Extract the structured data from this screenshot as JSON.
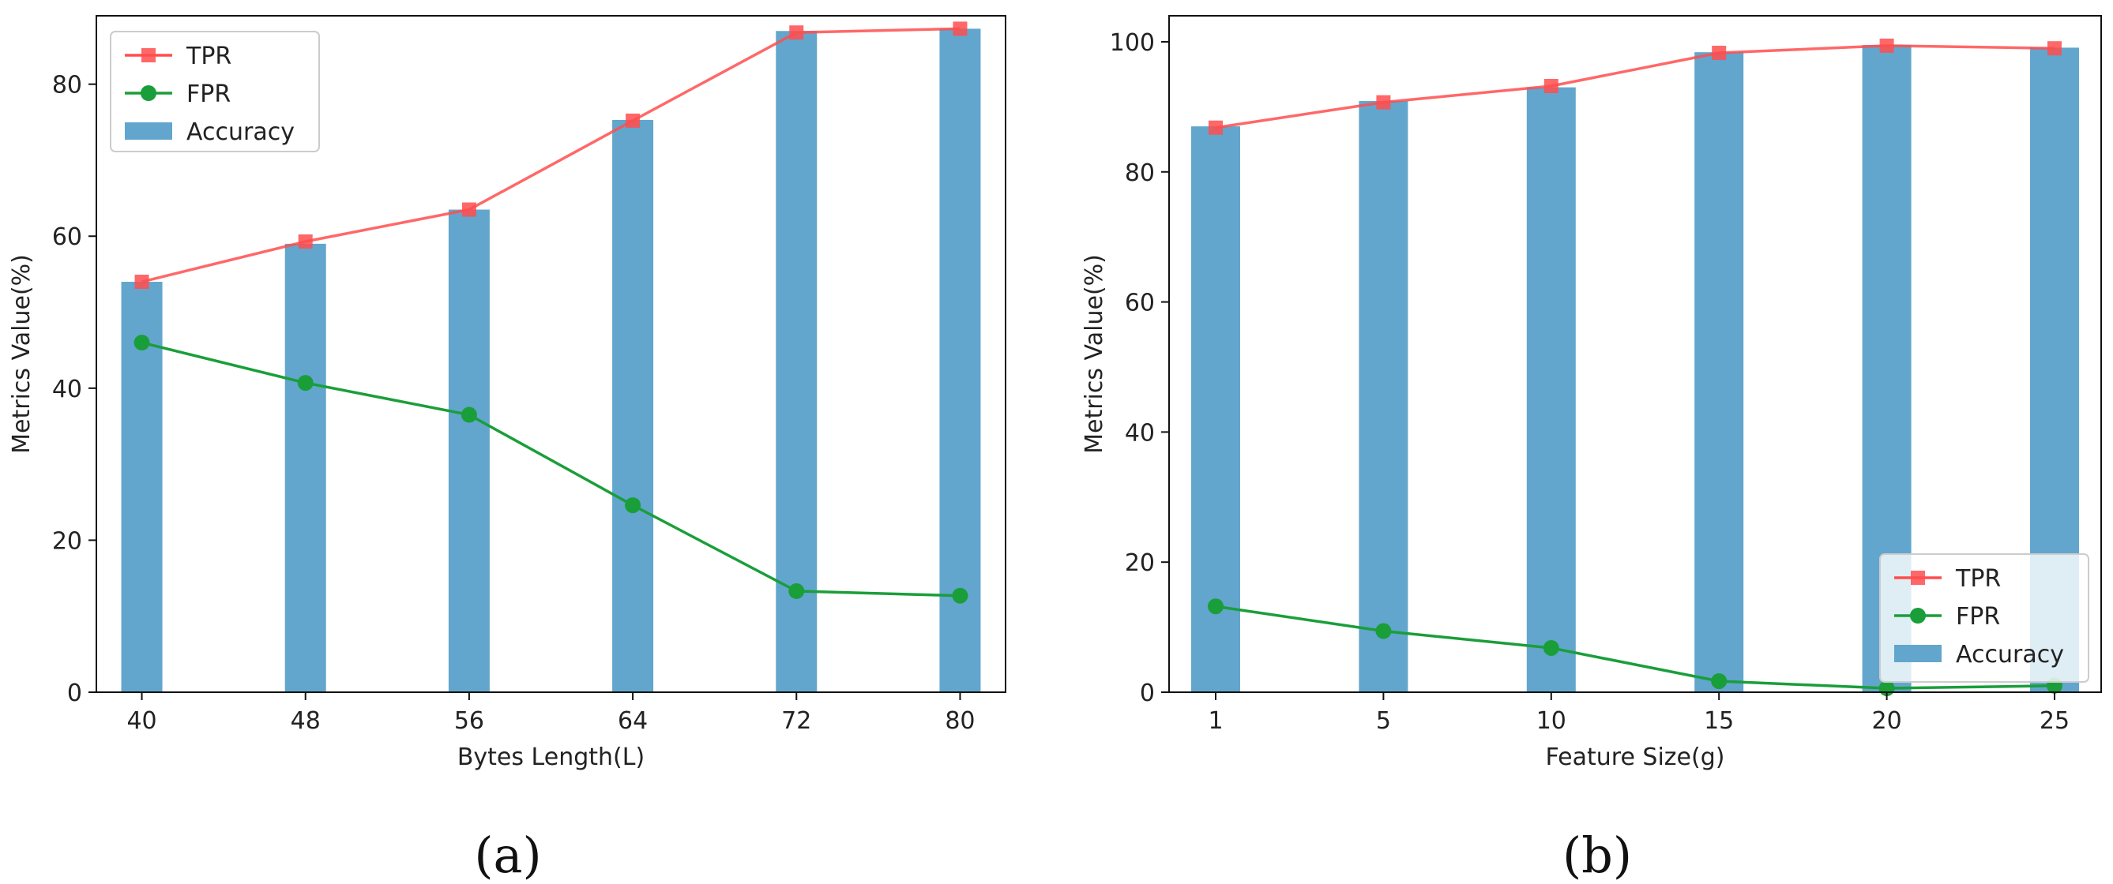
{
  "chart_data": [
    {
      "type": "bar",
      "id": "a",
      "caption": "(a)",
      "categories": [
        "40",
        "48",
        "56",
        "64",
        "72",
        "80"
      ],
      "xlabel": "Bytes Length(L)",
      "ylabel": "Metrics Value(%)",
      "ylim": [
        0,
        89
      ],
      "yticks": [
        0,
        20,
        40,
        60,
        80
      ],
      "legend_position": "top-left",
      "series": [
        {
          "name": "TPR",
          "kind": "line",
          "color": "#ff4d4d",
          "marker": "square",
          "values": [
            54.0,
            59.3,
            63.5,
            75.2,
            86.8,
            87.3
          ]
        },
        {
          "name": "FPR",
          "kind": "line",
          "color": "#1a9e3a",
          "marker": "circle",
          "values": [
            46.0,
            40.7,
            36.5,
            24.6,
            13.3,
            12.7
          ]
        },
        {
          "name": "Accuracy",
          "kind": "bar",
          "color": "#62a6cd",
          "values": [
            54.0,
            59.0,
            63.5,
            75.3,
            87.0,
            87.3
          ]
        }
      ]
    },
    {
      "type": "bar",
      "id": "b",
      "caption": "(b)",
      "categories": [
        "1",
        "5",
        "10",
        "15",
        "20",
        "25"
      ],
      "xlabel": "Feature Size(g)",
      "ylabel": "Metrics Value(%)",
      "ylim": [
        0,
        104
      ],
      "yticks": [
        0,
        20,
        40,
        60,
        80,
        100
      ],
      "legend_position": "lower-right",
      "series": [
        {
          "name": "TPR",
          "kind": "line",
          "color": "#ff4d4d",
          "marker": "square",
          "values": [
            86.8,
            90.7,
            93.2,
            98.3,
            99.4,
            99.0
          ]
        },
        {
          "name": "FPR",
          "kind": "line",
          "color": "#1a9e3a",
          "marker": "circle",
          "values": [
            13.2,
            9.4,
            6.8,
            1.7,
            0.6,
            1.0
          ]
        },
        {
          "name": "Accuracy",
          "kind": "bar",
          "color": "#62a6cd",
          "values": [
            87.0,
            90.9,
            93.0,
            98.4,
            99.5,
            99.1
          ]
        }
      ]
    }
  ]
}
